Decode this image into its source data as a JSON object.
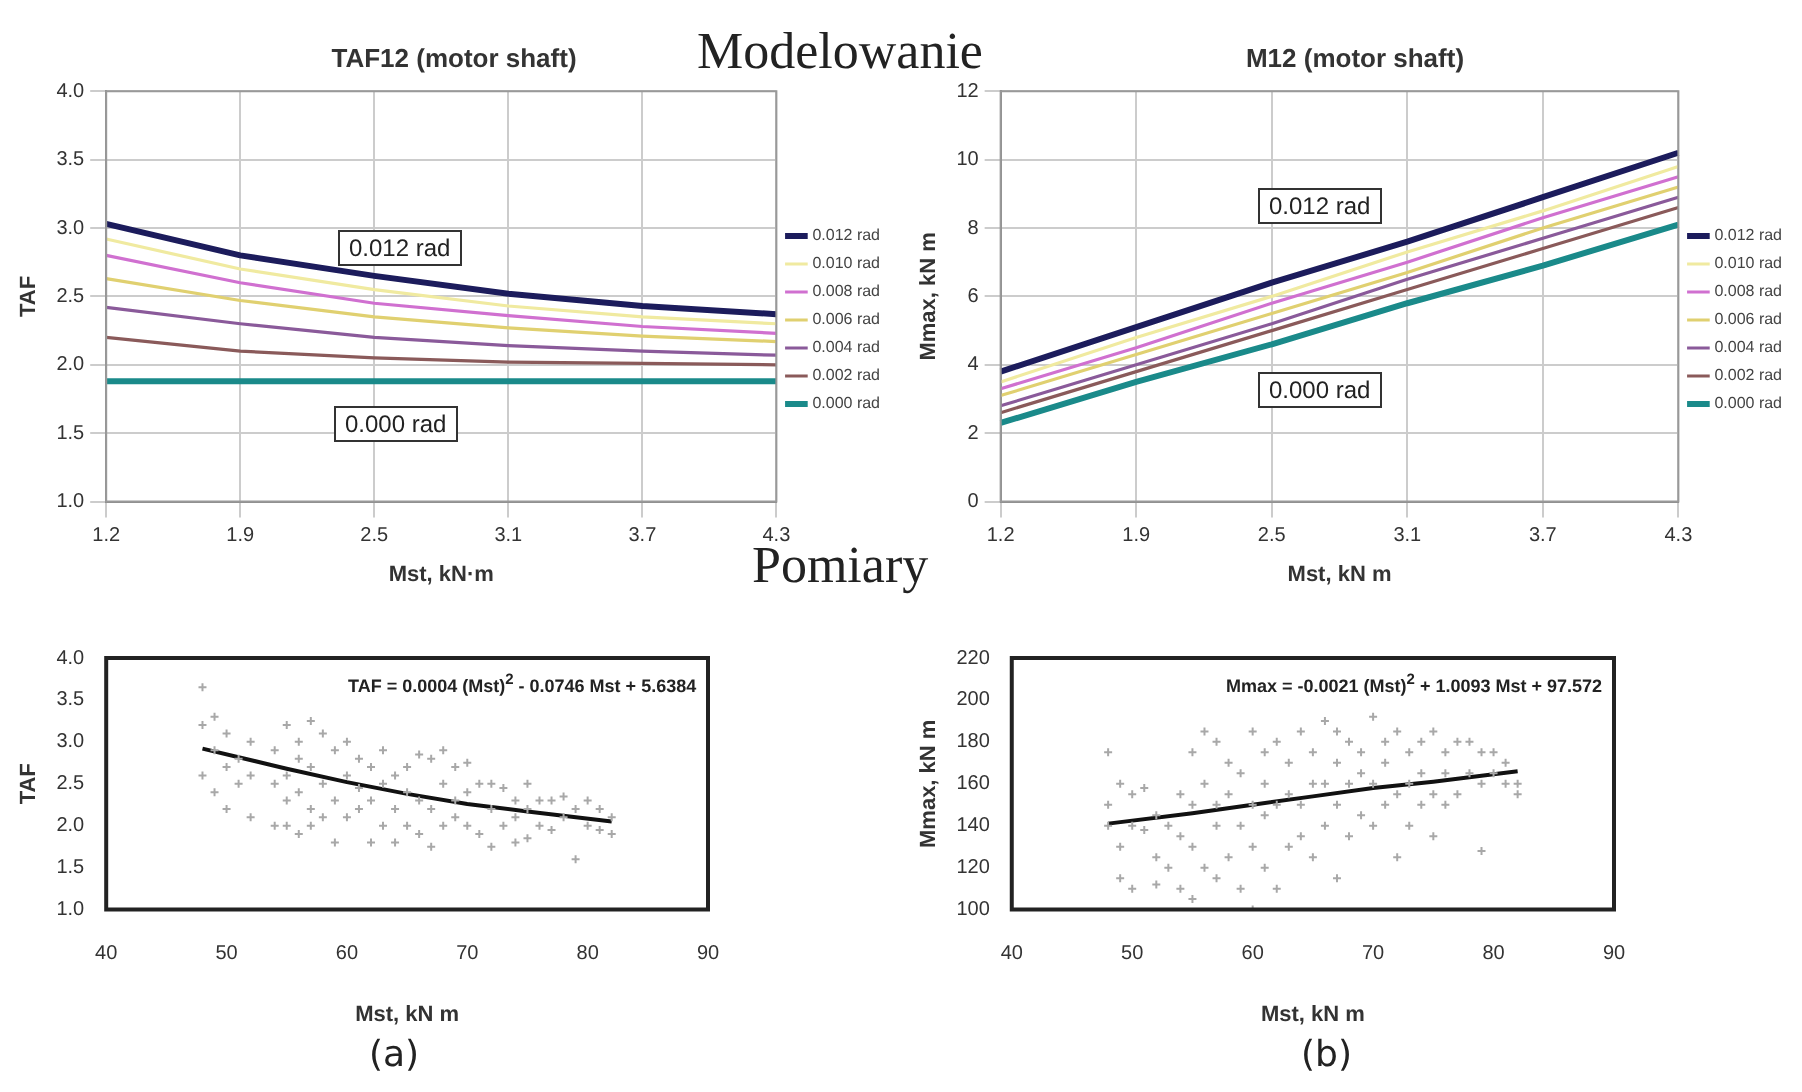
{
  "chart_data": [
    {
      "type": "line",
      "title": "TAF12 (motor shaft)",
      "xlabel": "Mst, kN·m",
      "ylabel": "TAF",
      "categories": [
        "1.2",
        "1.9",
        "2.5",
        "3.1",
        "3.7",
        "4.3"
      ],
      "series": [
        {
          "name": "0.012 rad",
          "color": "#1c1c5c",
          "values": [
            3.03,
            2.8,
            2.65,
            2.52,
            2.43,
            2.37
          ]
        },
        {
          "name": "0.010 rad",
          "color": "#f0eaa0",
          "values": [
            2.92,
            2.7,
            2.55,
            2.43,
            2.35,
            2.3
          ]
        },
        {
          "name": "0.008 rad",
          "color": "#d070d0",
          "values": [
            2.8,
            2.6,
            2.45,
            2.36,
            2.28,
            2.23
          ]
        },
        {
          "name": "0.006 rad",
          "color": "#e0d070",
          "values": [
            2.63,
            2.47,
            2.35,
            2.27,
            2.21,
            2.17
          ]
        },
        {
          "name": "0.004 rad",
          "color": "#8a5a9a",
          "values": [
            2.42,
            2.3,
            2.2,
            2.14,
            2.1,
            2.07
          ]
        },
        {
          "name": "0.002 rad",
          "color": "#8a5a5a",
          "values": [
            2.2,
            2.1,
            2.05,
            2.02,
            2.01,
            2.0
          ]
        },
        {
          "name": "0.000 rad",
          "color": "#1a8a8a",
          "values": [
            1.88,
            1.88,
            1.88,
            1.88,
            1.88,
            1.88
          ]
        }
      ],
      "ylim": [
        1,
        4
      ],
      "yticks": [
        {
          "value": 1,
          "label": "1.0"
        },
        {
          "value": 1.5,
          "label": "1.5"
        },
        {
          "value": 2,
          "label": "2.0"
        },
        {
          "value": 2.5,
          "label": "2.5"
        },
        {
          "value": 3,
          "label": "3.0"
        },
        {
          "value": 3.5,
          "label": "3.5"
        },
        {
          "value": 4,
          "label": "4.0"
        }
      ],
      "grid": true,
      "legend": "right",
      "marker": "none",
      "annotations": [
        "0.012 rad",
        "0.000 rad",
        "Modelowanie"
      ]
    },
    {
      "type": "line",
      "title": "M12 (motor shaft)",
      "xlabel": "Mst, kN m",
      "ylabel": "Mmax, kN m",
      "categories": [
        "1.2",
        "1.9",
        "2.5",
        "3.1",
        "3.7",
        "4.3"
      ],
      "series": [
        {
          "name": "0.012 rad",
          "color": "#1c1c5c",
          "values": [
            3.8,
            5.1,
            6.4,
            7.6,
            8.9,
            10.2
          ]
        },
        {
          "name": "0.010 rad",
          "color": "#f0eaa0",
          "values": [
            3.5,
            4.8,
            6.0,
            7.3,
            8.5,
            9.8
          ]
        },
        {
          "name": "0.008 rad",
          "color": "#d070d0",
          "values": [
            3.3,
            4.5,
            5.8,
            7.0,
            8.3,
            9.5
          ]
        },
        {
          "name": "0.006 rad",
          "color": "#e0d070",
          "values": [
            3.1,
            4.3,
            5.5,
            6.7,
            8.0,
            9.2
          ]
        },
        {
          "name": "0.004 rad",
          "color": "#8a5a9a",
          "values": [
            2.8,
            4.0,
            5.2,
            6.5,
            7.7,
            8.9
          ]
        },
        {
          "name": "0.002 rad",
          "color": "#8a5a5a",
          "values": [
            2.6,
            3.8,
            5.0,
            6.2,
            7.4,
            8.6
          ]
        },
        {
          "name": "0.000 rad",
          "color": "#1a8a8a",
          "values": [
            2.3,
            3.5,
            4.6,
            5.8,
            6.9,
            8.1
          ]
        }
      ],
      "ylim": [
        0,
        12
      ],
      "yticks": [
        0,
        2,
        4,
        6,
        8,
        10,
        12
      ],
      "grid": true,
      "legend": "right",
      "marker": "none",
      "annotations": [
        "0.012 rad",
        "0.000 rad"
      ]
    },
    {
      "type": "scatter",
      "xlabel": "Mst, kN m",
      "ylabel": "TAF",
      "series": [
        {
          "color": "#a8a8a8",
          "marker": "cross",
          "x": [
            48,
            48,
            48,
            49,
            49,
            49,
            50,
            50,
            50,
            51,
            51,
            52,
            52,
            52,
            54,
            54,
            54,
            55,
            55,
            55,
            55,
            56,
            56,
            56,
            56,
            57,
            57,
            57,
            57,
            58,
            58,
            58,
            59,
            59,
            59,
            60,
            60,
            60,
            61,
            61,
            61,
            62,
            62,
            62,
            63,
            63,
            63,
            64,
            64,
            64,
            65,
            65,
            65,
            66,
            66,
            66,
            67,
            67,
            67,
            68,
            68,
            68,
            69,
            69,
            69,
            70,
            70,
            70,
            71,
            71,
            72,
            72,
            72,
            73,
            73,
            74,
            74,
            74,
            75,
            75,
            75,
            76,
            76,
            77,
            77,
            78,
            78,
            79,
            79,
            80,
            80,
            81,
            81,
            82,
            82
          ],
          "values": [
            3.65,
            3.2,
            2.6,
            3.3,
            2.4,
            2.9,
            3.1,
            2.2,
            2.7,
            2.8,
            2.5,
            2.1,
            2.6,
            3.0,
            2.0,
            2.9,
            2.5,
            3.2,
            2.0,
            2.6,
            2.3,
            3.0,
            2.4,
            1.9,
            2.8,
            3.25,
            2.2,
            2.7,
            2.0,
            3.1,
            2.5,
            2.1,
            1.8,
            2.9,
            2.3,
            3.0,
            2.6,
            2.1,
            2.8,
            2.2,
            2.45,
            1.8,
            2.7,
            2.3,
            2.9,
            2.0,
            2.5,
            1.8,
            2.6,
            2.2,
            2.7,
            2.0,
            2.4,
            1.9,
            2.85,
            2.3,
            2.8,
            1.75,
            2.2,
            2.9,
            2.0,
            2.5,
            2.7,
            2.1,
            2.3,
            2.75,
            2.0,
            2.4,
            2.5,
            1.9,
            1.75,
            2.5,
            2.2,
            2.45,
            2.0,
            1.8,
            2.3,
            2.1,
            2.5,
            1.85,
            2.2,
            2.3,
            2.0,
            2.3,
            1.95,
            2.35,
            2.1,
            1.6,
            2.2,
            2.3,
            2.0,
            2.2,
            1.95,
            2.1,
            1.9
          ]
        },
        {
          "type": "line",
          "color": "#111111",
          "marker": "none",
          "x": [
            48,
            55,
            60,
            65,
            70,
            75,
            82
          ],
          "values": [
            2.92,
            2.68,
            2.52,
            2.38,
            2.26,
            2.17,
            2.05
          ]
        }
      ],
      "xlim": [
        40,
        90
      ],
      "xticks": [
        40,
        50,
        60,
        70,
        80,
        90
      ],
      "ylim": [
        1,
        4
      ],
      "yticks": [
        {
          "value": 1,
          "label": "1.0"
        },
        {
          "value": 1.5,
          "label": "1.5"
        },
        {
          "value": 2,
          "label": "2.0"
        },
        {
          "value": 2.5,
          "label": "2.5"
        },
        {
          "value": 3,
          "label": "3.0"
        },
        {
          "value": 3.5,
          "label": "3.5"
        },
        {
          "value": 4,
          "label": "4.0"
        }
      ],
      "grid": false,
      "legend": false,
      "annotations": [
        "TAF = 0.0004 (Mst)$^{2}$ - 0.0746 Mst + 5.6384",
        "Pomiary",
        "(a)"
      ]
    },
    {
      "type": "scatter",
      "xlabel": "Mst, kN m",
      "ylabel": "Mmax, kN m",
      "series": [
        {
          "color": "#a8a8a8",
          "marker": "cross",
          "x": [
            48,
            48,
            48,
            49,
            49,
            49,
            50,
            50,
            50,
            51,
            51,
            52,
            52,
            52,
            53,
            53,
            54,
            54,
            54,
            55,
            55,
            55,
            55,
            56,
            56,
            56,
            57,
            57,
            57,
            57,
            58,
            58,
            58,
            59,
            59,
            59,
            60,
            60,
            60,
            60,
            61,
            61,
            61,
            61,
            62,
            62,
            62,
            63,
            63,
            63,
            64,
            64,
            64,
            65,
            65,
            65,
            66,
            66,
            66,
            67,
            67,
            67,
            67,
            68,
            68,
            68,
            69,
            69,
            69,
            70,
            70,
            70,
            71,
            71,
            71,
            72,
            72,
            72,
            73,
            73,
            73,
            74,
            74,
            74,
            75,
            75,
            75,
            76,
            76,
            76,
            77,
            77,
            78,
            78,
            79,
            79,
            79,
            80,
            80,
            81,
            81,
            82,
            82
          ],
          "values": [
            175,
            150,
            140,
            115,
            160,
            130,
            110,
            155,
            140,
            158,
            138,
            112,
            145,
            125,
            140,
            120,
            110,
            155,
            135,
            175,
            105,
            150,
            130,
            185,
            160,
            120,
            180,
            115,
            150,
            140,
            170,
            125,
            155,
            110,
            165,
            140,
            185,
            100,
            150,
            130,
            175,
            120,
            160,
            145,
            180,
            110,
            150,
            170,
            130,
            155,
            185,
            135,
            150,
            175,
            125,
            160,
            190,
            140,
            160,
            185,
            115,
            170,
            150,
            180,
            135,
            160,
            175,
            145,
            165,
            192,
            140,
            160,
            180,
            150,
            170,
            185,
            125,
            155,
            175,
            140,
            160,
            180,
            150,
            165,
            185,
            135,
            155,
            175,
            150,
            165,
            180,
            155,
            180,
            165,
            128,
            175,
            160,
            175,
            165,
            170,
            160,
            160,
            155
          ]
        },
        {
          "type": "line",
          "color": "#111111",
          "marker": "none",
          "x": [
            48,
            55,
            60,
            65,
            70,
            75,
            82
          ],
          "values": [
            141,
            146,
            150,
            154,
            158,
            161,
            166
          ]
        }
      ],
      "xlim": [
        40,
        90
      ],
      "xticks": [
        40,
        50,
        60,
        70,
        80,
        90
      ],
      "ylim": [
        100,
        220
      ],
      "yticks": [
        100,
        120,
        140,
        160,
        180,
        200,
        220
      ],
      "grid": false,
      "legend": false,
      "annotations": [
        "Mmax = -0.0021 (Mst)$^{2}$ + 1.0093 Mst + 97.572",
        "(b)"
      ]
    }
  ]
}
